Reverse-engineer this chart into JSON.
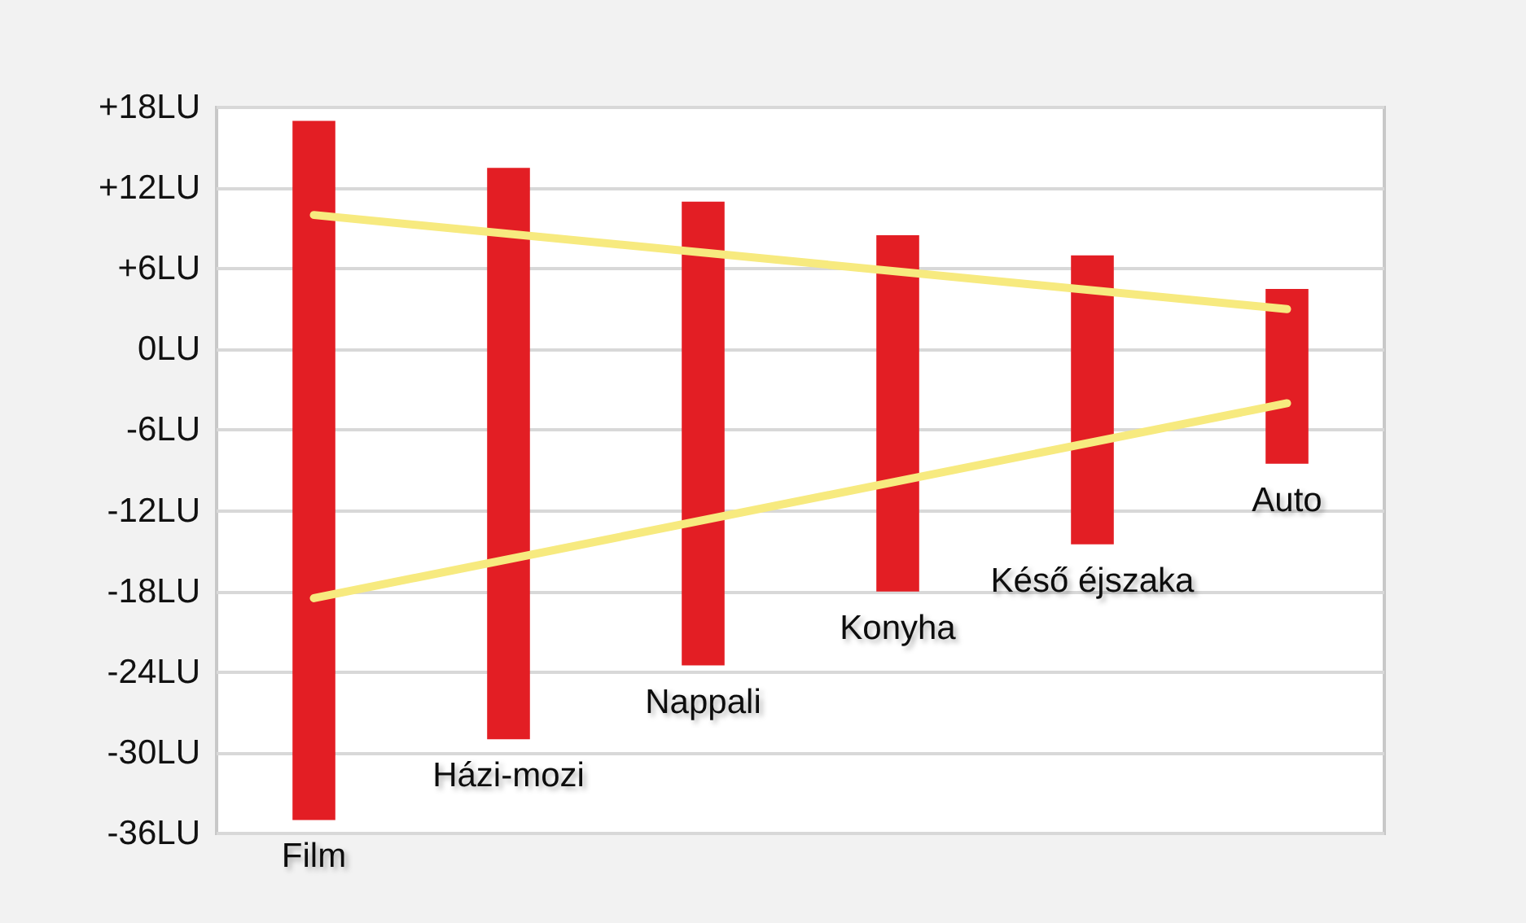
{
  "chart_data": {
    "type": "bar",
    "categories": [
      "Film",
      "Házi-mozi",
      "Nappali",
      "Konyha",
      "Késő éjszaka",
      "Auto"
    ],
    "series": [
      {
        "color": "#e31e24",
        "values": [
          52,
          42.5,
          34.5,
          26.5,
          21.5,
          13
        ],
        "base": [
          -35,
          -29,
          -23.5,
          -18,
          -14.5,
          -8.5
        ]
      },
      {
        "type": "line",
        "color": "#f7ea7f",
        "values": [
          10,
          null,
          null,
          null,
          null,
          3
        ]
      },
      {
        "type": "line",
        "color": "#f7ea7f",
        "values": [
          -18.5,
          null,
          null,
          null,
          null,
          -4
        ]
      }
    ],
    "ylim": [
      -36,
      18
    ],
    "yticks": [
      {
        "value": -36,
        "label": "-36LU"
      },
      {
        "value": -30,
        "label": "-30LU"
      },
      {
        "value": -24,
        "label": "-24LU"
      },
      {
        "value": -18,
        "label": "-18LU"
      },
      {
        "value": -12,
        "label": "-12LU"
      },
      {
        "value": -6,
        "label": "-6LU"
      },
      {
        "value": 0,
        "label": "0LU"
      },
      {
        "value": 6,
        "label": "+6LU"
      },
      {
        "value": 12,
        "label": "+12LU"
      },
      {
        "value": 18,
        "label": "+18LU"
      }
    ],
    "grid": "y",
    "marker": "none",
    "line_style": "solid",
    "tick_labels": "y"
  }
}
